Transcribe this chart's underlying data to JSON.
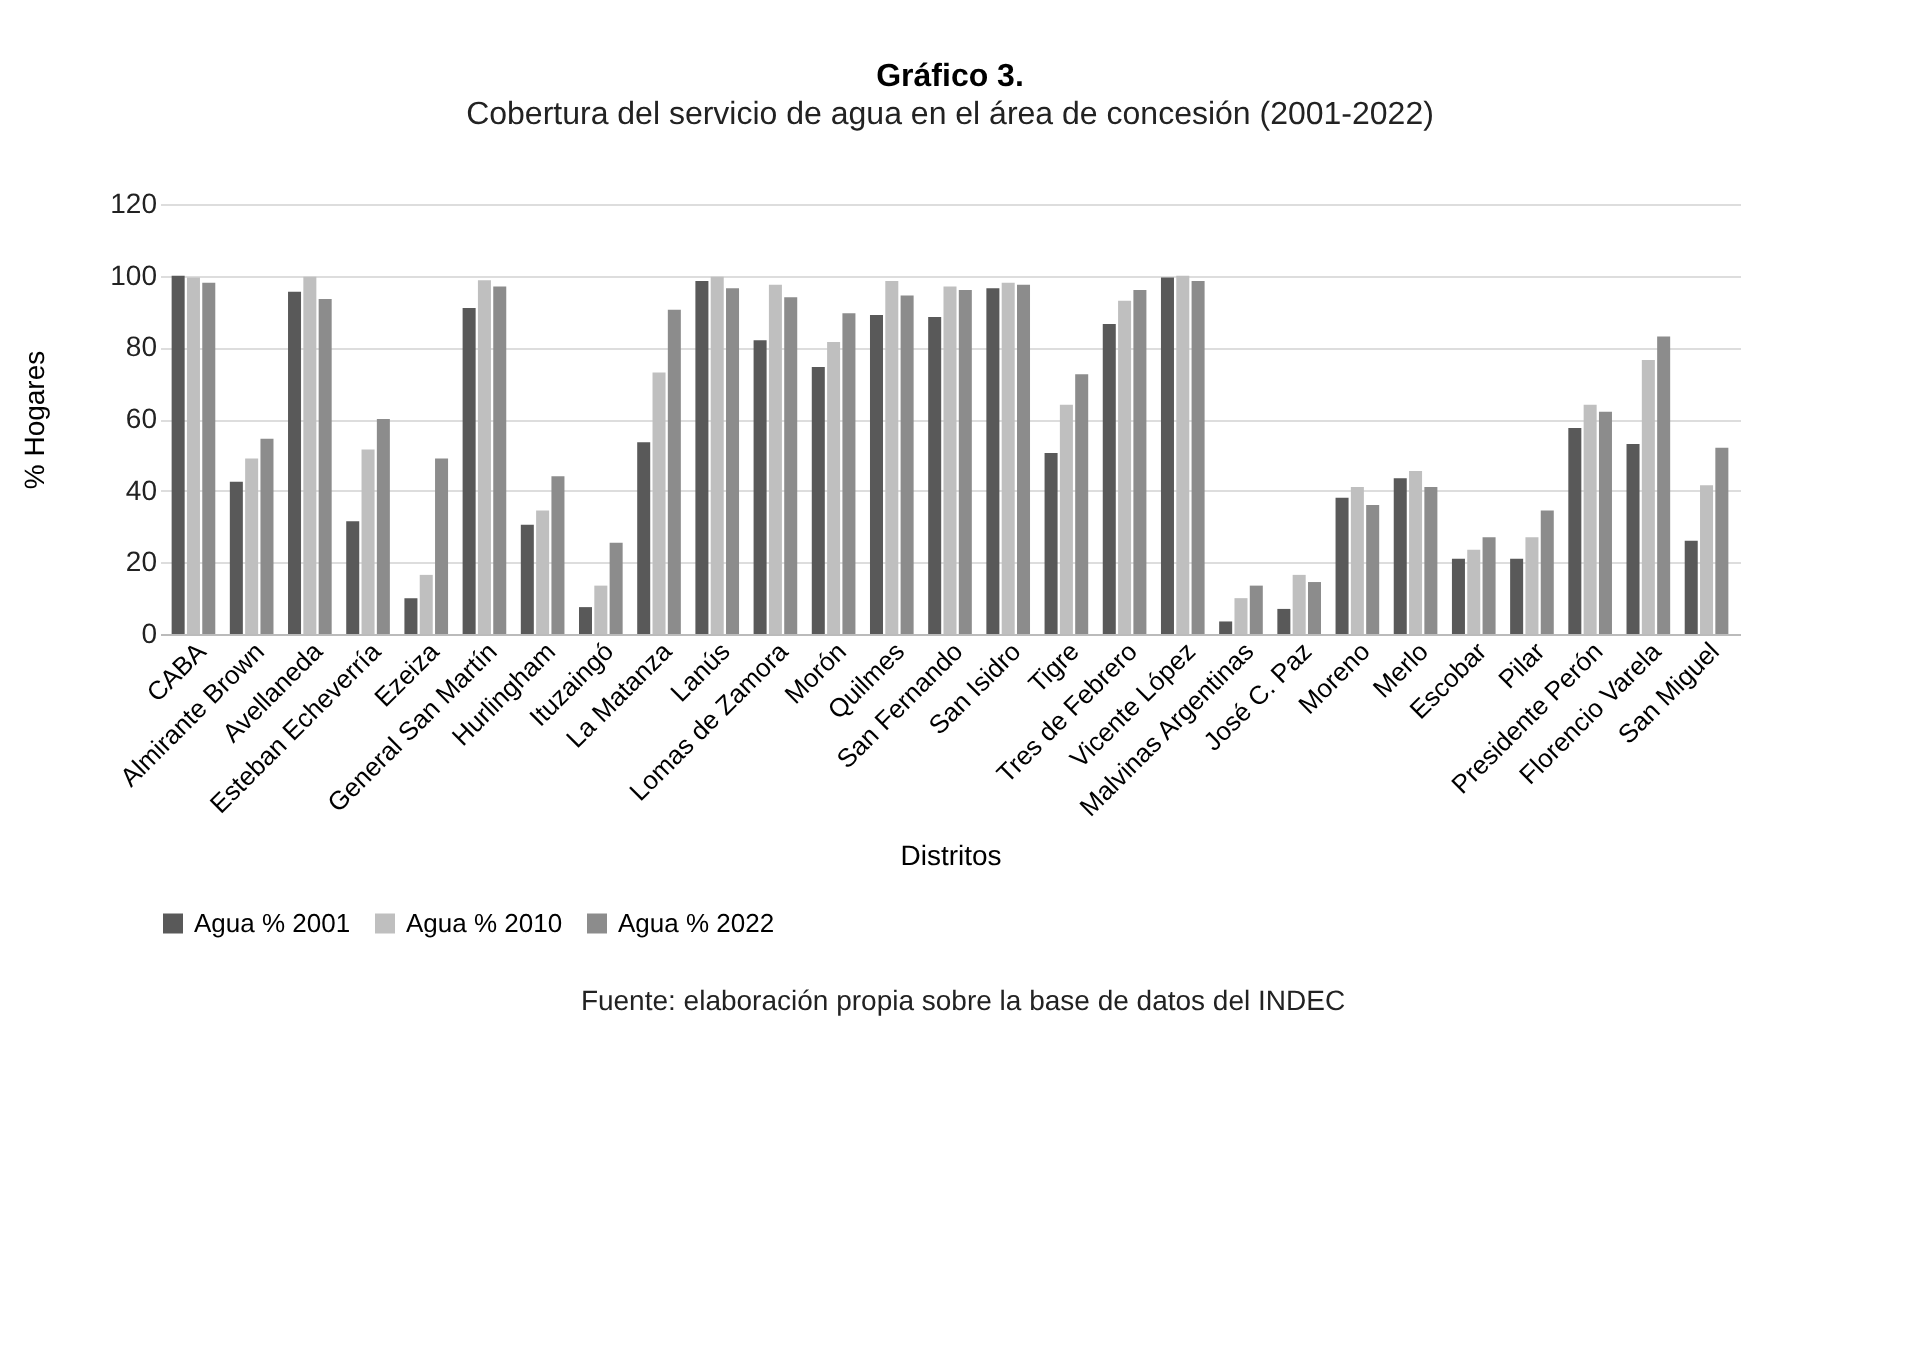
{
  "chart_data": {
    "type": "bar",
    "title": "Gráfico 3.",
    "subtitle": "Cobertura del servicio de agua en el área de concesión (2001-2022)",
    "xlabel": "Distritos",
    "ylabel": "% Hogares",
    "categories": [
      "CABA",
      "Almirante Brown",
      "Avellaneda",
      "Esteban Echeverría",
      "Ezeiza",
      "General San Martín",
      "Hurlingham",
      "Ituzaingó",
      "La Matanza",
      "Lanús",
      "Lomas de Zamora",
      "Morón",
      "Quilmes",
      "San Fernando",
      "San Isidro",
      "Tigre",
      "Tres de Febrero",
      "Vicente López",
      "Malvinas Argentinas",
      "José C. Paz",
      "Moreno",
      "Merlo",
      "Escobar",
      "Pilar",
      "Presidente Perón",
      "Florencio Varela",
      "San Miguel"
    ],
    "series": [
      {
        "name": "Agua % 2001",
        "color": "#595959",
        "values": [
          100,
          42.5,
          95.5,
          31.5,
          10,
          91,
          30.5,
          7.5,
          53.5,
          98.5,
          82,
          74.5,
          89,
          88.5,
          96.5,
          50.5,
          86.5,
          99.5,
          3.5,
          7,
          38,
          43.5,
          21,
          21,
          57.5,
          53,
          26
        ]
      },
      {
        "name": "Agua % 2010",
        "color": "#bfbfbf",
        "values": [
          99.5,
          49,
          99.7,
          51.5,
          16.5,
          98.7,
          34.5,
          13.5,
          73,
          99.7,
          97.5,
          81.5,
          98.5,
          97,
          98,
          64,
          93,
          100,
          10,
          16.5,
          41,
          45.5,
          23.5,
          27,
          64,
          76.5,
          41.5
        ]
      },
      {
        "name": "Agua % 2022",
        "color": "#8c8c8c",
        "values": [
          98,
          54.5,
          93.5,
          60,
          49,
          97,
          44,
          25.5,
          90.5,
          96.5,
          94,
          89.5,
          94.5,
          96,
          97.5,
          72.5,
          96,
          98.5,
          13.5,
          14.5,
          36,
          41,
          27,
          34.5,
          62,
          83,
          52
        ]
      }
    ],
    "ylim": [
      0,
      120
    ],
    "yticks": [
      0,
      20,
      40,
      60,
      80,
      100,
      120
    ],
    "grid": "y",
    "legend": "bottom",
    "annotations": [
      "Fuente: elaboración propia sobre la base de datos del INDEC"
    ]
  }
}
